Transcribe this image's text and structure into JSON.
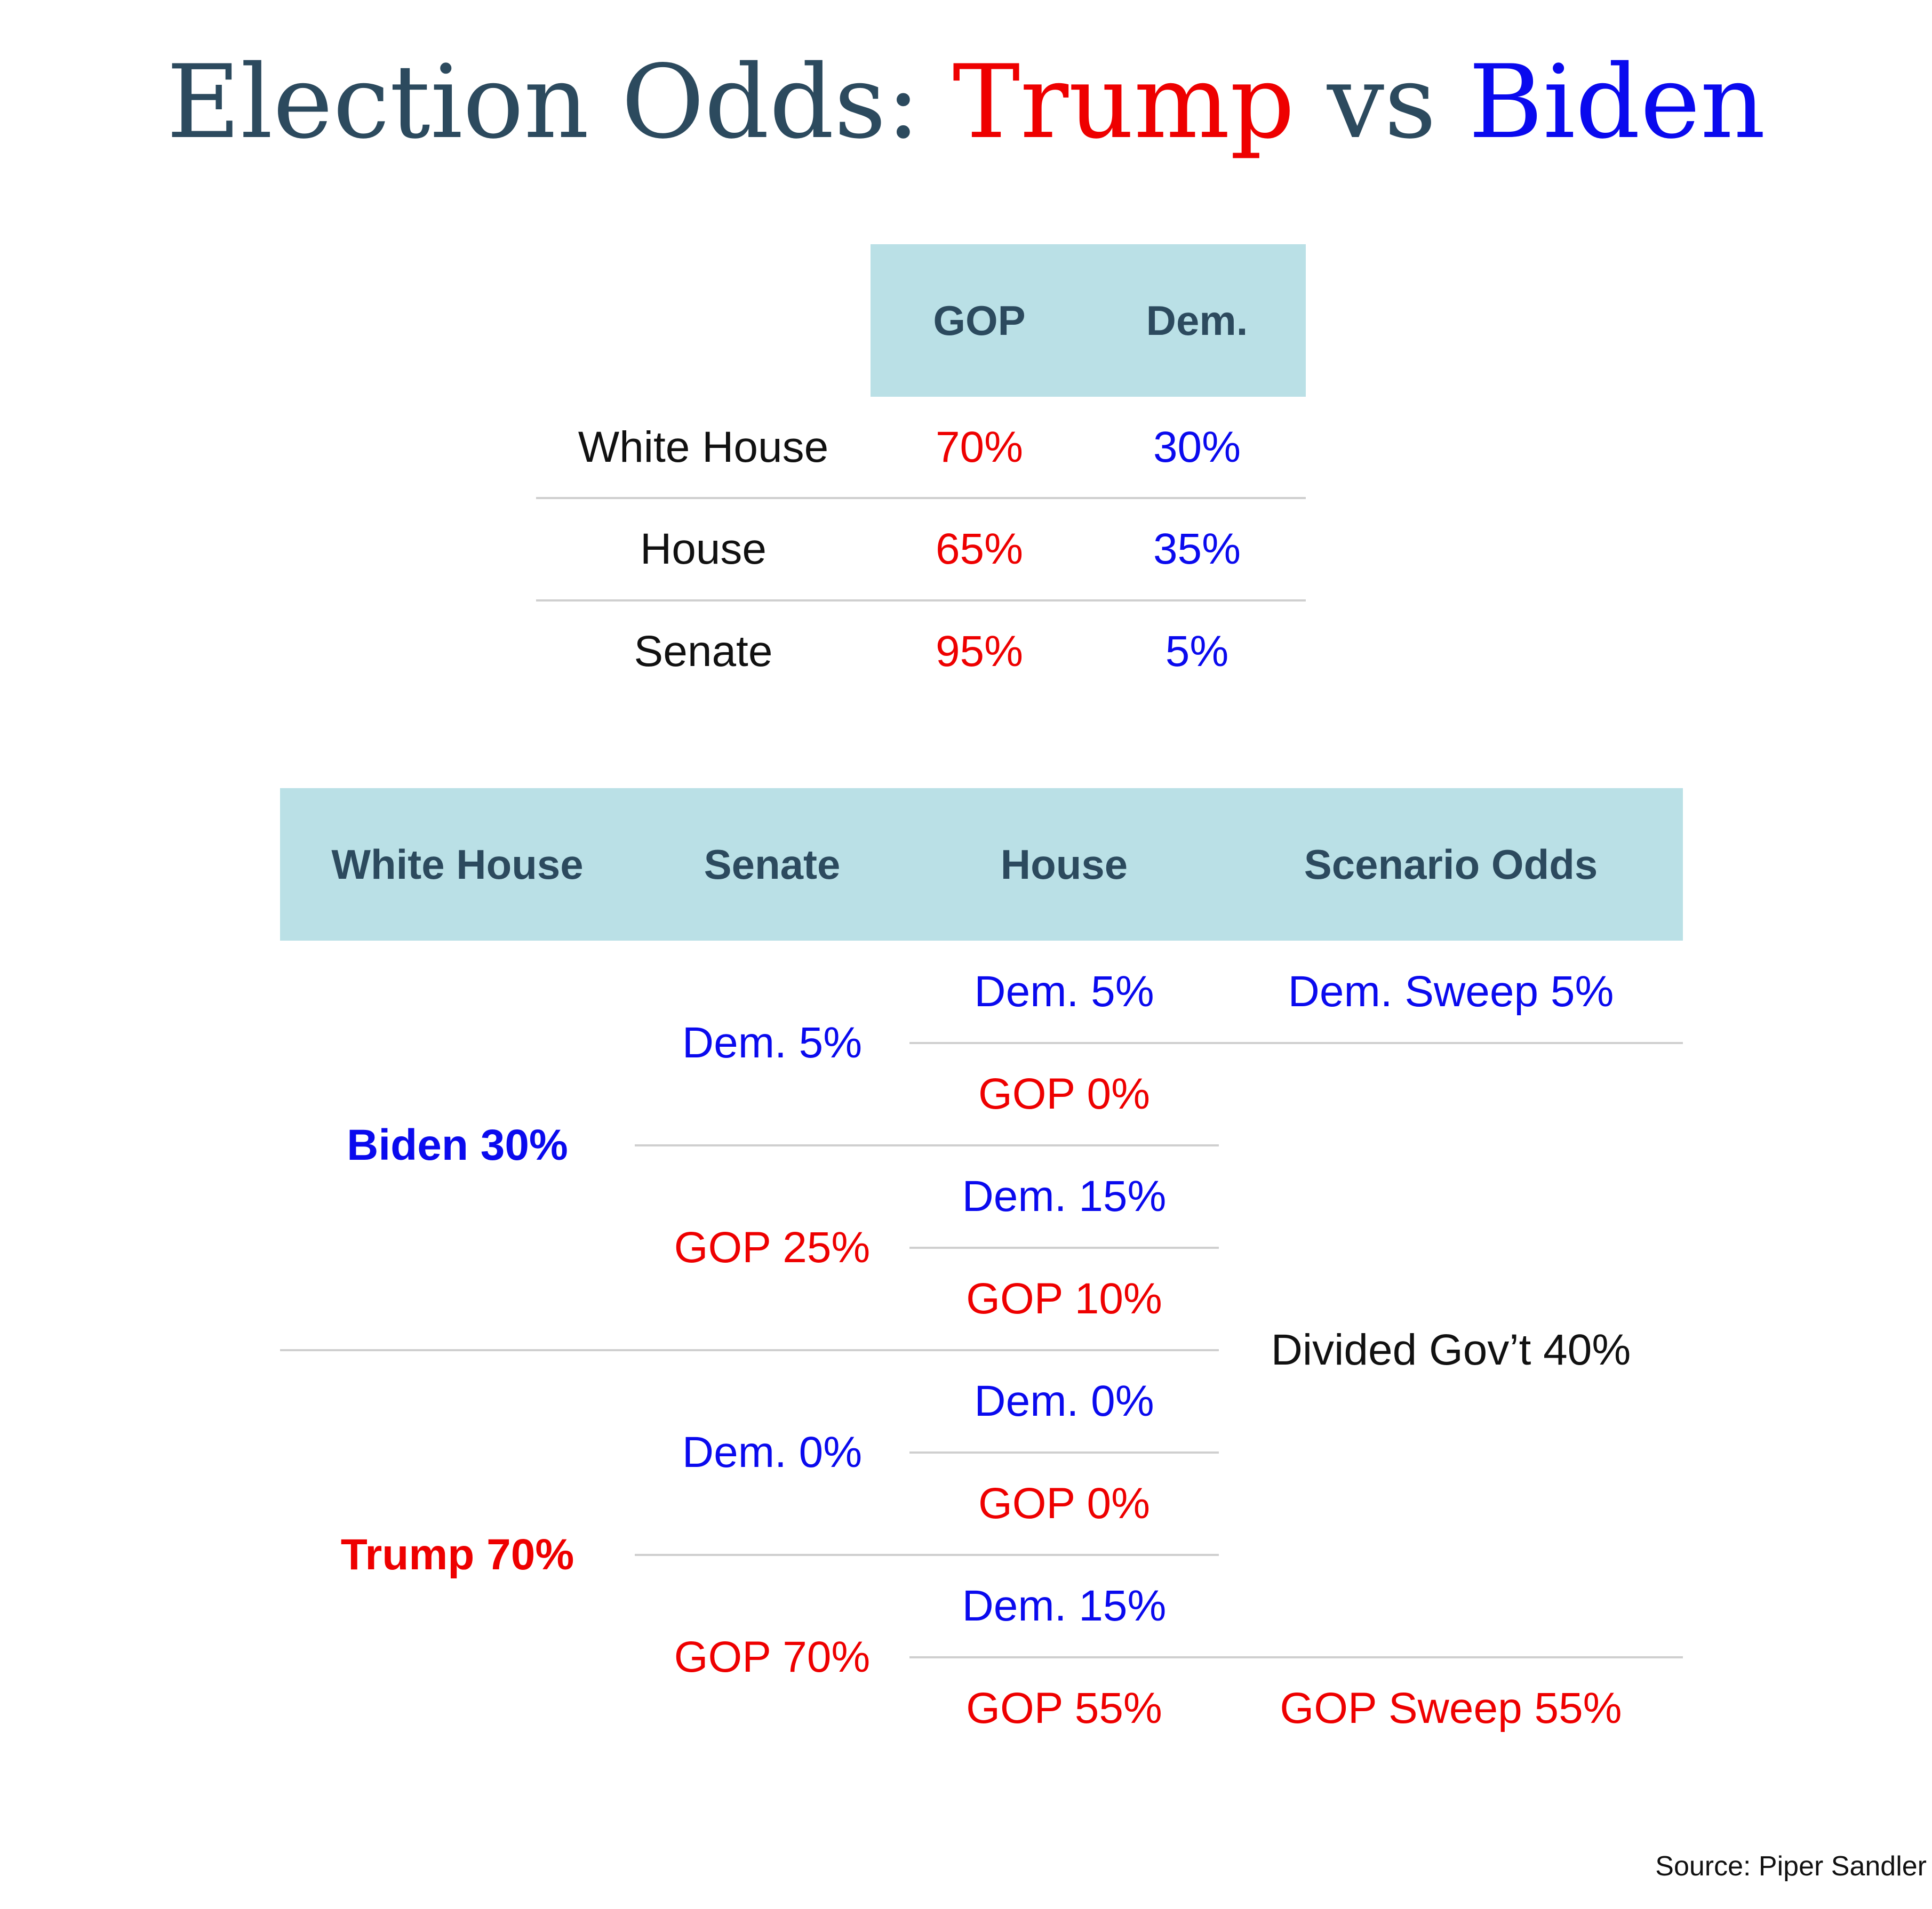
{
  "title": {
    "part1": "Election Odds: ",
    "trump": "Trump",
    "vs": " vs ",
    "biden": "Biden"
  },
  "colors": {
    "gop": "#ee0000",
    "dem": "#0a0aee",
    "header_bg": "#bae0e6",
    "header_text": "#2c4a5e"
  },
  "chart_data": [
    {
      "type": "table",
      "columns": [
        "GOP",
        "Dem."
      ],
      "rows": [
        {
          "label": "White House",
          "gop": "70%",
          "dem": "30%"
        },
        {
          "label": "House",
          "gop": "65%",
          "dem": "35%"
        },
        {
          "label": "Senate",
          "gop": "95%",
          "dem": "5%"
        }
      ]
    },
    {
      "type": "table",
      "columns": [
        "White House",
        "Senate",
        "House",
        "Scenario Odds"
      ],
      "white_house": [
        {
          "label": "Biden 30%",
          "party": "dem"
        },
        {
          "label": "Trump 70%",
          "party": "gop"
        }
      ],
      "senate": [
        {
          "label": "Dem. 5%",
          "party": "dem"
        },
        {
          "label": "GOP 25%",
          "party": "gop"
        },
        {
          "label": "Dem. 0%",
          "party": "dem"
        },
        {
          "label": "GOP 70%",
          "party": "gop"
        }
      ],
      "house": [
        {
          "label": "Dem. 5%",
          "party": "dem"
        },
        {
          "label": "GOP 0%",
          "party": "gop"
        },
        {
          "label": "Dem. 15%",
          "party": "dem"
        },
        {
          "label": "GOP 10%",
          "party": "gop"
        },
        {
          "label": "Dem. 0%",
          "party": "dem"
        },
        {
          "label": "GOP 0%",
          "party": "gop"
        },
        {
          "label": "Dem. 15%",
          "party": "dem"
        },
        {
          "label": "GOP 55%",
          "party": "gop"
        }
      ],
      "scenarios": [
        {
          "label": "Dem. Sweep 5%",
          "party": "dem"
        },
        {
          "label": "Divided Gov’t 40%",
          "party": "none"
        },
        {
          "label": "GOP Sweep 55%",
          "party": "gop"
        }
      ]
    }
  ],
  "source": "Source: Piper Sandler"
}
